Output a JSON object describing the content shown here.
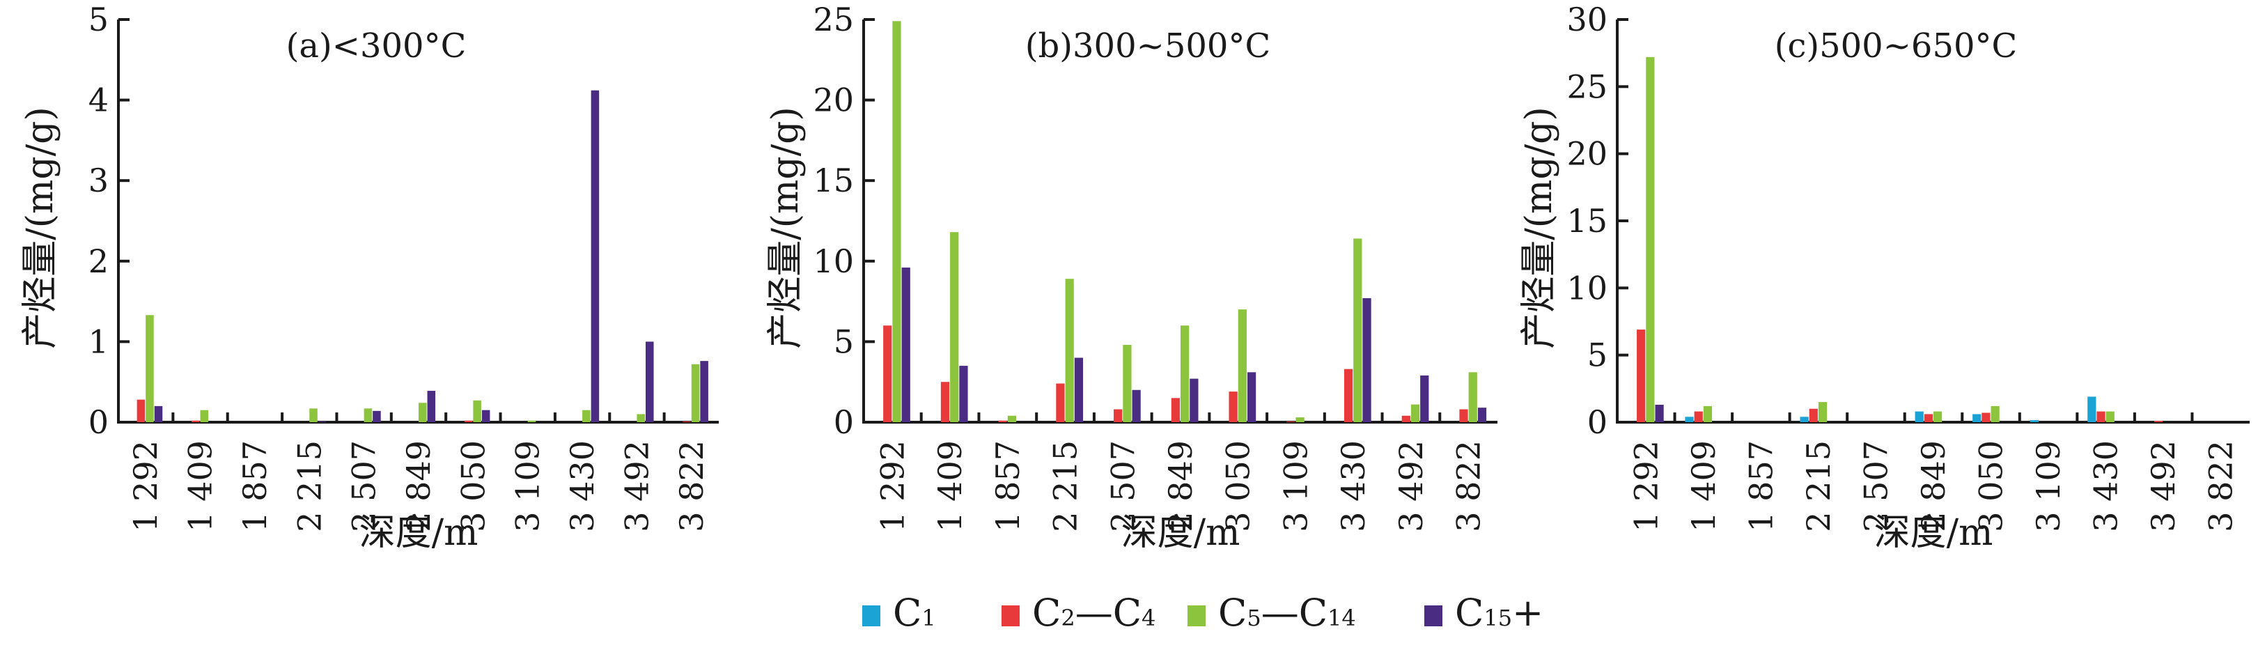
{
  "chart_data": [
    {
      "type": "bar",
      "title": "(a)<300°C",
      "xlabel": "深度/m",
      "ylabel": "产烃量/(mg/g)",
      "ylim": [
        0,
        5
      ],
      "yticks": [
        "0",
        "1",
        "2",
        "3",
        "4",
        "5"
      ],
      "categories": [
        "1 292",
        "1 409",
        "1 857",
        "2 215",
        "2 507",
        "2 849",
        "3 050",
        "3 109",
        "3 430",
        "3 492",
        "3 822"
      ],
      "series": [
        {
          "name": "C1",
          "values": [
            0,
            0,
            0,
            0,
            0,
            0,
            0,
            0,
            0,
            0,
            0
          ]
        },
        {
          "name": "C2—C4",
          "values": [
            0.28,
            0.02,
            0,
            0,
            0,
            0,
            0.02,
            0,
            0,
            0,
            0.01
          ]
        },
        {
          "name": "C5—C14",
          "values": [
            1.33,
            0.15,
            0,
            0.17,
            0.17,
            0.24,
            0.27,
            0.02,
            0.15,
            0.1,
            0.72
          ]
        },
        {
          "name": "C15+",
          "values": [
            0.2,
            0,
            0,
            0.01,
            0.14,
            0.39,
            0.15,
            0,
            4.12,
            1.0,
            0.76
          ]
        }
      ],
      "grid": false
    },
    {
      "type": "bar",
      "title": "(b)300~500°C",
      "xlabel": "深度/m",
      "ylabel": "产烃量/(mg/g)",
      "ylim": [
        0,
        25
      ],
      "yticks": [
        "0",
        "5",
        "10",
        "15",
        "20",
        "25"
      ],
      "categories": [
        "1 292",
        "1 409",
        "1 857",
        "2 215",
        "2 507",
        "2 849",
        "3 050",
        "3 109",
        "3 430",
        "3 492",
        "3 822"
      ],
      "series": [
        {
          "name": "C1",
          "values": [
            0,
            0,
            0,
            0,
            0,
            0,
            0,
            0,
            0,
            0,
            0
          ]
        },
        {
          "name": "C2—C4",
          "values": [
            6.0,
            2.5,
            0.1,
            2.4,
            0.8,
            1.5,
            1.9,
            0.05,
            3.3,
            0.4,
            0.8
          ]
        },
        {
          "name": "C5—C14",
          "values": [
            24.9,
            11.8,
            0.4,
            8.9,
            4.8,
            6.0,
            7.0,
            0.3,
            11.4,
            1.1,
            3.1
          ]
        },
        {
          "name": "C15+",
          "values": [
            9.6,
            3.5,
            0,
            4.0,
            2.0,
            2.7,
            3.1,
            0,
            7.7,
            2.9,
            0.9
          ]
        }
      ],
      "grid": false
    },
    {
      "type": "bar",
      "title": "(c)500~650°C",
      "xlabel": "深度/m",
      "ylabel": "产烃量/(mg/g)",
      "ylim": [
        0,
        30
      ],
      "yticks": [
        "0",
        "5",
        "10",
        "15",
        "20",
        "25",
        "30"
      ],
      "categories": [
        "1 292",
        "1 409",
        "1 857",
        "2 215",
        "2 507",
        "2 849",
        "3 050",
        "3 109",
        "3 430",
        "3 492",
        "3 822"
      ],
      "series": [
        {
          "name": "C1",
          "values": [
            0,
            0.4,
            0,
            0.4,
            0,
            0.8,
            0.6,
            0.15,
            1.9,
            0,
            0
          ]
        },
        {
          "name": "C2—C4",
          "values": [
            6.9,
            0.8,
            0,
            1.0,
            0,
            0.6,
            0.7,
            0,
            0.8,
            0.1,
            0
          ]
        },
        {
          "name": "C5—C14",
          "values": [
            27.2,
            1.2,
            0,
            1.5,
            0,
            0.8,
            1.2,
            0,
            0.8,
            0,
            0
          ]
        },
        {
          "name": "C15+",
          "values": [
            1.3,
            0,
            0,
            0,
            0,
            0,
            0,
            0,
            0,
            0,
            0
          ]
        }
      ],
      "grid": false
    }
  ],
  "legend": {
    "placement": "bottom-center",
    "items": [
      {
        "base": "C",
        "sub": "1",
        "sub2": "",
        "sep": "",
        "plus": "",
        "color": "#1ba3d6"
      },
      {
        "base": "C",
        "sub": "2",
        "sep": "—C",
        "sub2": "4",
        "plus": "",
        "color": "#e83a3a"
      },
      {
        "base": "C",
        "sub": "5",
        "sep": "—C",
        "sub2": "14",
        "plus": "",
        "color": "#8cc43e"
      },
      {
        "base": "C",
        "sub": "15",
        "sep": "",
        "sub2": "",
        "plus": "+",
        "color": "#4a2d82"
      }
    ]
  },
  "colors": {
    "c1": "#1ba3d6",
    "c2c4": "#e83a3a",
    "c5c14": "#8cc43e",
    "c15plus": "#4a2d82",
    "axis": "#1a1a1a"
  }
}
